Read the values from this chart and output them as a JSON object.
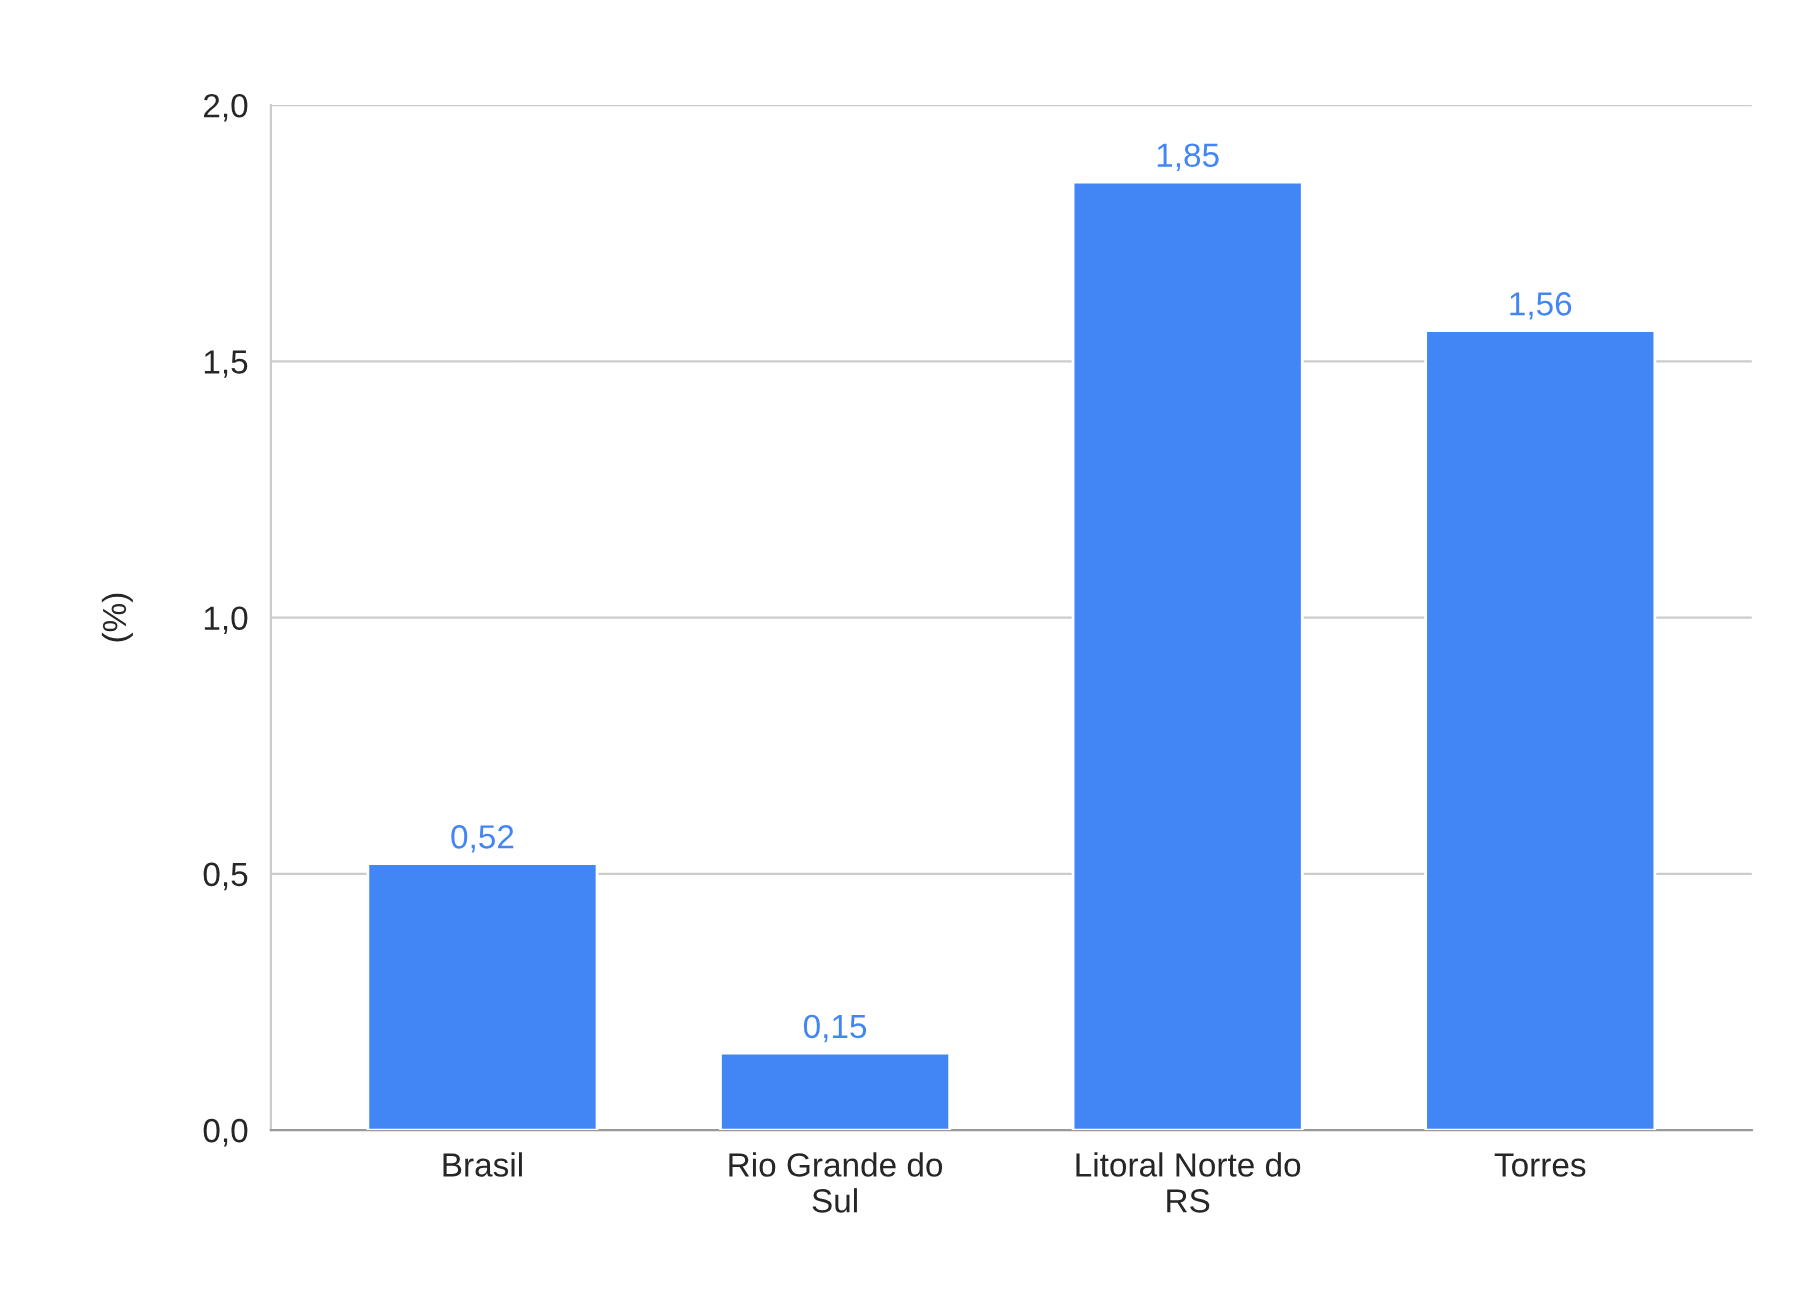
{
  "chart_data": {
    "type": "bar",
    "ylabel": "(%)",
    "categories": [
      "Brasil",
      "Rio Grande do\nSul",
      "Litoral Norte do\nRS",
      "Torres"
    ],
    "values": [
      0.52,
      0.15,
      1.85,
      1.56
    ],
    "value_labels": [
      "0,52",
      "0,15",
      "1,85",
      "1,56"
    ],
    "color": "#4285f4",
    "ylim": [
      0,
      2.0
    ],
    "yticks": [
      {
        "value": 0,
        "label": "0,0"
      },
      {
        "value": 0.5,
        "label": "0,5"
      },
      {
        "value": 1.0,
        "label": "1,0"
      },
      {
        "value": 1.5,
        "label": "1,5"
      },
      {
        "value": 2.0,
        "label": "2,0"
      }
    ],
    "grid": "y"
  }
}
